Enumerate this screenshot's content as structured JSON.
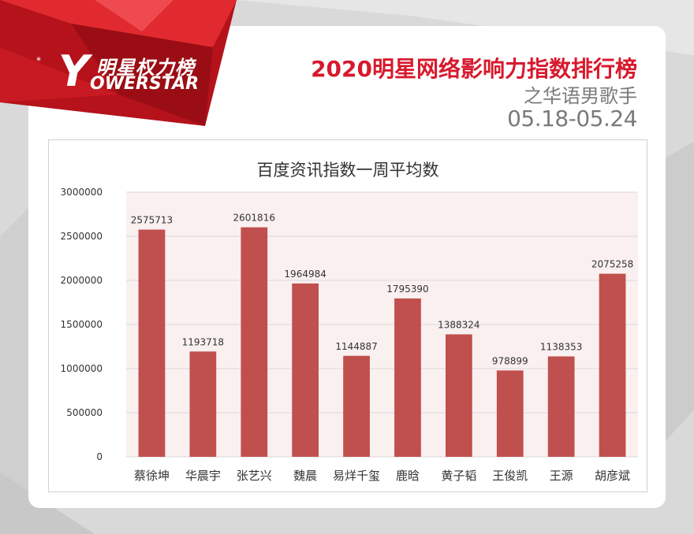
{
  "brand": {
    "logo_cn": "明星权力榜",
    "logo_en": "OWERSTAR",
    "logo_letter": "Y",
    "star": "*"
  },
  "header": {
    "title": "2020明星网络影响力指数排行榜",
    "subtitle": "之华语男歌手",
    "date_range": "05.18-05.24"
  },
  "colors": {
    "accent_red": "#d7192d",
    "bar": "#c0504d",
    "plot_bg": "#faf0f0"
  },
  "chart_data": {
    "type": "bar",
    "title": "百度资讯指数一周平均数",
    "categories": [
      "蔡徐坤",
      "华晨宇",
      "张艺兴",
      "魏晨",
      "易烊千玺",
      "鹿晗",
      "黄子韬",
      "王俊凯",
      "王源",
      "胡彦斌"
    ],
    "values": [
      2575713,
      1193718,
      2601816,
      1964984,
      1144887,
      1795390,
      1388324,
      978899,
      1138353,
      2075258
    ],
    "ylim": [
      0,
      3000000
    ],
    "yticks": [
      0,
      500000,
      1000000,
      1500000,
      2000000,
      2500000,
      3000000
    ],
    "grid": true
  }
}
